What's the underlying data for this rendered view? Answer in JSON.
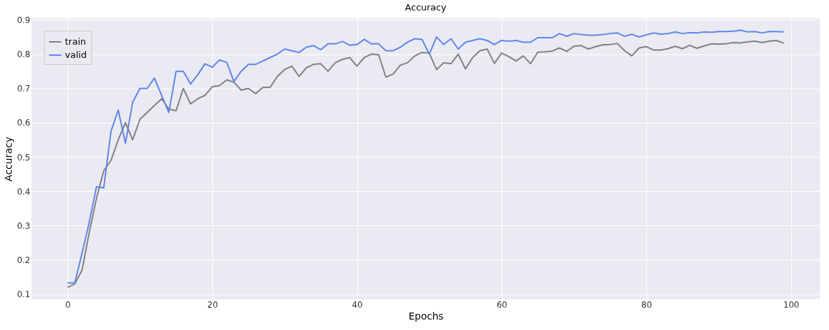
{
  "chart_data": {
    "type": "line",
    "title": "Accuracy",
    "xlabel": "Epochs",
    "ylabel": "Accuracy",
    "xlim": [
      -5,
      104
    ],
    "xticks": [
      0,
      20,
      40,
      60,
      80,
      100
    ],
    "ylim": [
      0.085,
      0.905
    ],
    "yticks": [
      0.1,
      0.2,
      0.3,
      0.4,
      0.5,
      0.6,
      0.7,
      0.8,
      0.9
    ],
    "grid": true,
    "legend": "top left",
    "line_style": "solid",
    "marker": "none",
    "x": [
      0,
      1,
      2,
      3,
      4,
      5,
      6,
      7,
      8,
      9,
      10,
      11,
      12,
      13,
      14,
      15,
      16,
      17,
      18,
      19,
      20,
      21,
      22,
      23,
      24,
      25,
      26,
      27,
      28,
      29,
      30,
      31,
      32,
      33,
      34,
      35,
      36,
      37,
      38,
      39,
      40,
      41,
      42,
      43,
      44,
      45,
      46,
      47,
      48,
      49,
      50,
      51,
      52,
      53,
      54,
      55,
      56,
      57,
      58,
      59,
      60,
      61,
      62,
      63,
      64,
      65,
      66,
      67,
      68,
      69,
      70,
      71,
      72,
      73,
      74,
      75,
      76,
      77,
      78,
      79,
      80,
      81,
      82,
      83,
      84,
      85,
      86,
      87,
      88,
      89,
      90,
      91,
      92,
      93,
      94,
      95,
      96,
      97,
      98,
      99
    ],
    "series": [
      {
        "name": "train",
        "color": "#808080",
        "values": [
          0.12,
          0.13,
          0.17,
          0.28,
          0.38,
          0.46,
          0.49,
          0.55,
          0.6,
          0.55,
          0.61,
          0.63,
          0.65,
          0.67,
          0.64,
          0.635,
          0.7,
          0.655,
          0.67,
          0.68,
          0.705,
          0.708,
          0.725,
          0.718,
          0.695,
          0.7,
          0.685,
          0.703,
          0.703,
          0.735,
          0.755,
          0.765,
          0.735,
          0.76,
          0.77,
          0.772,
          0.75,
          0.775,
          0.785,
          0.79,
          0.765,
          0.79,
          0.8,
          0.798,
          0.733,
          0.742,
          0.768,
          0.775,
          0.795,
          0.805,
          0.803,
          0.755,
          0.775,
          0.772,
          0.8,
          0.757,
          0.79,
          0.81,
          0.815,
          0.773,
          0.803,
          0.793,
          0.78,
          0.795,
          0.772,
          0.806,
          0.807,
          0.809,
          0.818,
          0.808,
          0.823,
          0.825,
          0.815,
          0.822,
          0.827,
          0.828,
          0.831,
          0.81,
          0.795,
          0.818,
          0.822,
          0.812,
          0.812,
          0.816,
          0.823,
          0.816,
          0.826,
          0.817,
          0.824,
          0.83,
          0.829,
          0.83,
          0.834,
          0.833,
          0.836,
          0.838,
          0.834,
          0.838,
          0.84,
          0.832
        ]
      },
      {
        "name": "valid",
        "color": "#5f84ea",
        "values": [
          0.133,
          0.133,
          0.22,
          0.31,
          0.413,
          0.41,
          0.575,
          0.637,
          0.54,
          0.66,
          0.7,
          0.7,
          0.73,
          0.68,
          0.63,
          0.75,
          0.75,
          0.713,
          0.74,
          0.772,
          0.762,
          0.783,
          0.776,
          0.72,
          0.75,
          0.77,
          0.77,
          0.78,
          0.79,
          0.8,
          0.815,
          0.81,
          0.805,
          0.82,
          0.825,
          0.813,
          0.83,
          0.83,
          0.837,
          0.826,
          0.828,
          0.843,
          0.83,
          0.83,
          0.81,
          0.81,
          0.82,
          0.835,
          0.845,
          0.843,
          0.8,
          0.85,
          0.828,
          0.845,
          0.815,
          0.835,
          0.84,
          0.845,
          0.84,
          0.828,
          0.84,
          0.838,
          0.84,
          0.835,
          0.835,
          0.848,
          0.848,
          0.848,
          0.86,
          0.852,
          0.86,
          0.857,
          0.855,
          0.855,
          0.857,
          0.86,
          0.862,
          0.852,
          0.858,
          0.85,
          0.856,
          0.862,
          0.858,
          0.86,
          0.865,
          0.86,
          0.863,
          0.862,
          0.865,
          0.864,
          0.866,
          0.866,
          0.867,
          0.87,
          0.865,
          0.866,
          0.862,
          0.866,
          0.866,
          0.865
        ]
      }
    ]
  }
}
